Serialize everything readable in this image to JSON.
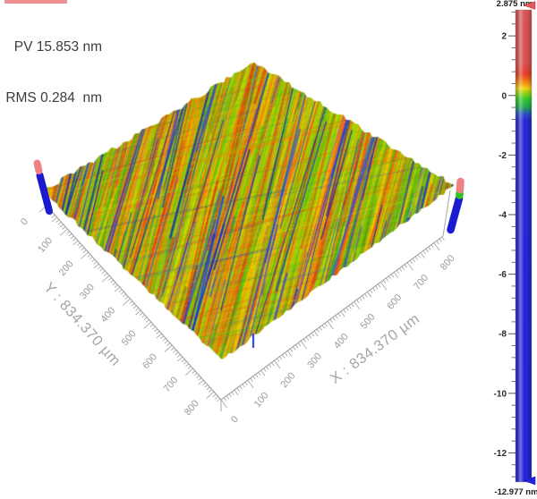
{
  "stats": {
    "pv": "PV 15.853 nm",
    "rms": "RMS 0.284  nm"
  },
  "axes": {
    "x": {
      "title": "X : 834.370 µm"
    },
    "y": {
      "title": "Y : 834.370 µm"
    }
  },
  "colorbar": {
    "max_label": "2.875 nm",
    "min_label": "-12.977 nm"
  },
  "chart_data": {
    "type": "surface_3d",
    "title": "",
    "stats": {
      "PV_nm": 15.853,
      "RMS_nm": 0.284
    },
    "x_axis": {
      "label": "X",
      "unit": "µm",
      "range": [
        0,
        834.37
      ],
      "major_tick_step": 100,
      "medium_tick_step": 50,
      "minor_tick_step": 10,
      "tick_labels": [
        0,
        100,
        200,
        300,
        400,
        500,
        600,
        700,
        800
      ]
    },
    "y_axis": {
      "label": "Y",
      "unit": "µm",
      "range": [
        0,
        834.37
      ],
      "major_tick_step": 100,
      "medium_tick_step": 50,
      "minor_tick_step": 10,
      "tick_labels": [
        0,
        100,
        200,
        300,
        400,
        500,
        600,
        700,
        800
      ]
    },
    "z_axis": {
      "unit": "nm",
      "min": -12.977,
      "max": 2.875,
      "colorbar_major_ticks": [
        2,
        0,
        -2,
        -4,
        -6,
        -8,
        -10,
        -12
      ],
      "colorbar_minor_step": 0.4
    },
    "colormap_stops": [
      {
        "v": 2.875,
        "color": "#d64848"
      },
      {
        "v": 1.05,
        "color": "#d84343"
      },
      {
        "v": 0.72,
        "color": "#e62e18"
      },
      {
        "v": 0.45,
        "color": "#f57d00"
      },
      {
        "v": 0.24,
        "color": "#f2d000"
      },
      {
        "v": 0.06,
        "color": "#7fd400"
      },
      {
        "v": -0.12,
        "color": "#24c81e"
      },
      {
        "v": -0.4,
        "color": "#0f9f46"
      },
      {
        "v": -0.62,
        "color": "#1840c4"
      },
      {
        "v": -0.85,
        "color": "#1717d2"
      },
      {
        "v": -12.977,
        "color": "#1414d6"
      }
    ],
    "surface_texture": {
      "description": "dense diagonal polishing-scratch streaks (rainbow height colormap) filling a tilted square surface viewed isometrically",
      "base_color": "#a9ce12",
      "palette": [
        [
          "#e83110",
          8
        ],
        [
          "#f3581c",
          12
        ],
        [
          "#ff8a00",
          12
        ],
        [
          "#ffc400",
          7
        ],
        [
          "#dedf00",
          9
        ],
        [
          "#a8d800",
          16
        ],
        [
          "#6ecb00",
          12
        ],
        [
          "#2fbf10",
          8
        ],
        [
          "#12a84a",
          3
        ],
        [
          "#2a52e0",
          4
        ],
        [
          "#1b24c8",
          3
        ]
      ],
      "deep_scratch_colors": [
        "#1b2ed0",
        "#2446e8",
        "#0f18b8"
      ]
    },
    "markers": {
      "max_marker_color": "#e05858",
      "min_marker_color": "#2222d8",
      "corner_post_top_color": "#ee8181",
      "corner_post_mid_color": "#2ec41e",
      "corner_post_bottom_color": "#1a1ad0"
    }
  }
}
